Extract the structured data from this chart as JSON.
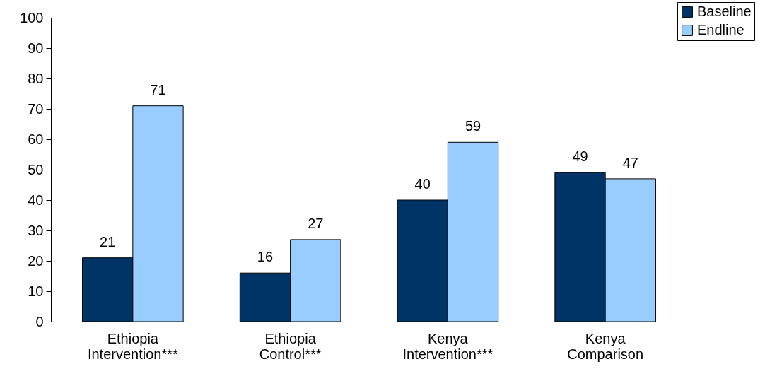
{
  "chart_data": {
    "type": "bar",
    "categories": [
      "Ethiopia Intervention***",
      "Ethiopia Control***",
      "Kenya Intervention***",
      "Kenya Comparison"
    ],
    "series": [
      {
        "name": "Baseline",
        "color": "#003366",
        "values": [
          21,
          16,
          40,
          49
        ]
      },
      {
        "name": "Endline",
        "color": "#99ccff",
        "values": [
          71,
          27,
          59,
          47
        ]
      }
    ],
    "ylim": [
      0,
      100
    ],
    "yticks": [
      0,
      10,
      20,
      30,
      40,
      50,
      60,
      70,
      80,
      90,
      100
    ],
    "grid": false,
    "legend": "top right",
    "data_labels": true
  }
}
